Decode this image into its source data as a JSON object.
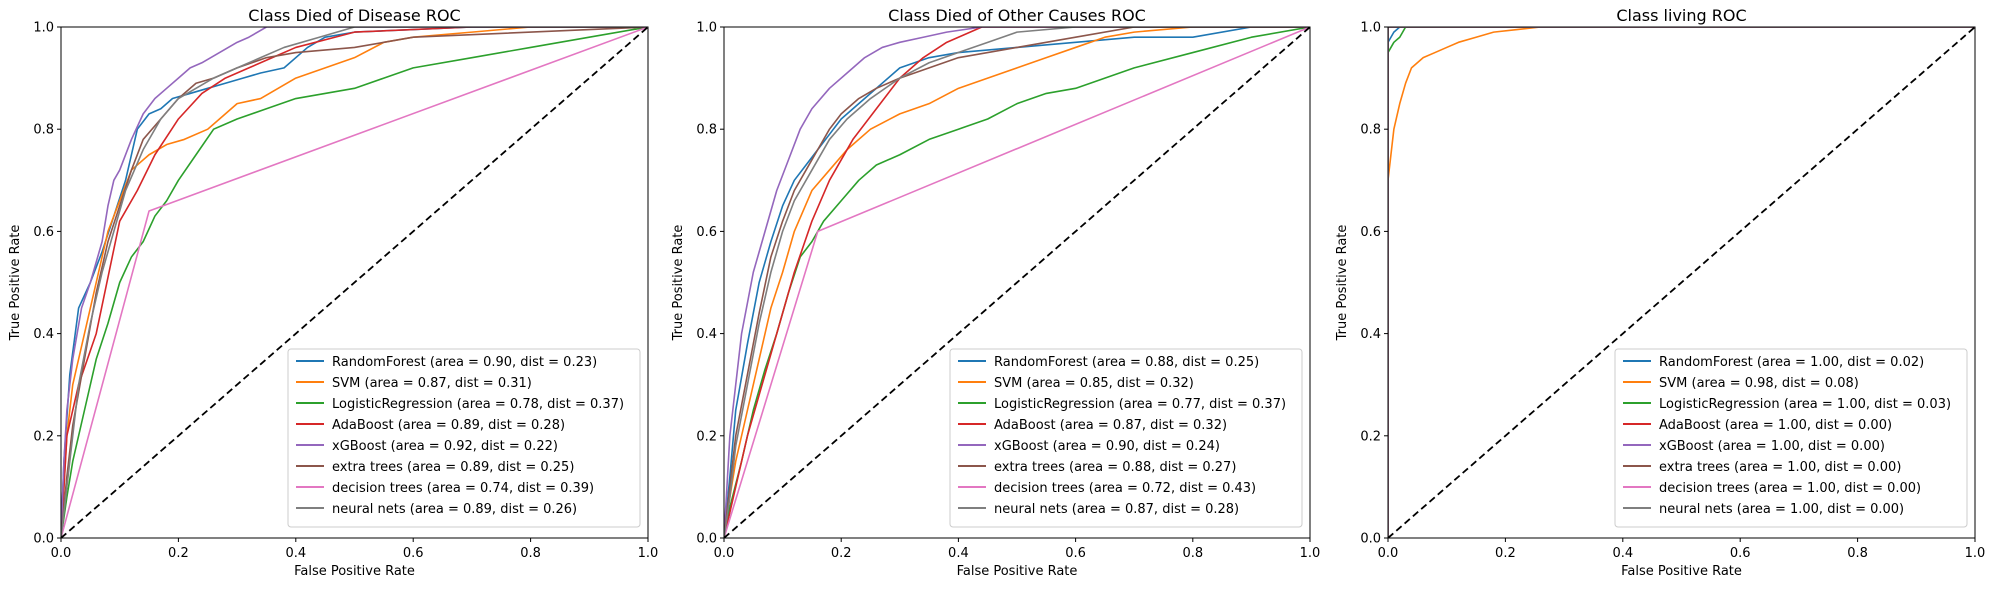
{
  "chart_data": [
    {
      "type": "line",
      "title": "Class Died of Disease ROC",
      "xlabel": "False Positive Rate",
      "ylabel": "True Positive Rate",
      "xlim": [
        0,
        1
      ],
      "ylim": [
        0,
        1
      ],
      "xticks": [
        "0.0",
        "0.2",
        "0.4",
        "0.6",
        "0.8",
        "1.0"
      ],
      "yticks": [
        "0.0",
        "0.2",
        "0.4",
        "0.6",
        "0.8",
        "1.0"
      ],
      "legend_position": "lower-right",
      "diagonal": "dashed black",
      "series": [
        {
          "name": "RandomForest (area = 0.90, dist = 0.23)",
          "color": "#1f77b4",
          "x": [
            0,
            0.005,
            0.015,
            0.03,
            0.05,
            0.07,
            0.09,
            0.11,
            0.13,
            0.15,
            0.17,
            0.19,
            0.22,
            0.25,
            0.28,
            0.31,
            0.34,
            0.38,
            0.42,
            0.45,
            0.5,
            0.6,
            0.7,
            0.8,
            1.0
          ],
          "y": [
            0,
            0.15,
            0.32,
            0.45,
            0.5,
            0.56,
            0.63,
            0.7,
            0.8,
            0.83,
            0.84,
            0.86,
            0.87,
            0.88,
            0.89,
            0.9,
            0.91,
            0.92,
            0.96,
            0.98,
            0.99,
            0.995,
            1.0,
            1.0,
            1.0
          ]
        },
        {
          "name": "SVM (area = 0.87, dist = 0.31)",
          "color": "#ff7f0e",
          "x": [
            0,
            0.005,
            0.01,
            0.02,
            0.04,
            0.06,
            0.08,
            0.1,
            0.12,
            0.15,
            0.18,
            0.21,
            0.25,
            0.28,
            0.3,
            0.34,
            0.37,
            0.4,
            0.45,
            0.5,
            0.55,
            0.6,
            0.7,
            0.8,
            1.0
          ],
          "y": [
            0,
            0.1,
            0.2,
            0.3,
            0.4,
            0.5,
            0.6,
            0.66,
            0.72,
            0.75,
            0.77,
            0.78,
            0.8,
            0.83,
            0.85,
            0.86,
            0.88,
            0.9,
            0.92,
            0.94,
            0.97,
            0.98,
            0.99,
            1.0,
            1.0
          ]
        },
        {
          "name": "LogisticRegression (area = 0.78, dist = 0.37)",
          "color": "#2ca02c",
          "x": [
            0,
            0.01,
            0.02,
            0.04,
            0.06,
            0.08,
            0.1,
            0.12,
            0.14,
            0.16,
            0.18,
            0.2,
            0.23,
            0.26,
            0.3,
            0.35,
            0.4,
            0.45,
            0.5,
            0.55,
            0.6,
            0.7,
            0.8,
            0.9,
            1.0
          ],
          "y": [
            0,
            0.08,
            0.15,
            0.25,
            0.35,
            0.42,
            0.5,
            0.55,
            0.58,
            0.63,
            0.66,
            0.7,
            0.75,
            0.8,
            0.82,
            0.84,
            0.86,
            0.87,
            0.88,
            0.9,
            0.92,
            0.94,
            0.96,
            0.98,
            1.0
          ]
        },
        {
          "name": "AdaBoost (area = 0.89, dist = 0.28)",
          "color": "#d62728",
          "x": [
            0,
            0.01,
            0.03,
            0.06,
            0.1,
            0.13,
            0.16,
            0.2,
            0.24,
            0.28,
            0.32,
            0.36,
            0.4,
            0.5,
            0.7,
            1.0
          ],
          "y": [
            0,
            0.2,
            0.3,
            0.4,
            0.62,
            0.68,
            0.75,
            0.82,
            0.87,
            0.9,
            0.92,
            0.94,
            0.96,
            0.99,
            1.0,
            1.0
          ]
        },
        {
          "name": "xGBoost (area = 0.92, dist = 0.22)",
          "color": "#9467bd",
          "x": [
            0,
            0.005,
            0.01,
            0.02,
            0.035,
            0.05,
            0.07,
            0.08,
            0.09,
            0.1,
            0.12,
            0.14,
            0.16,
            0.18,
            0.2,
            0.22,
            0.24,
            0.27,
            0.3,
            0.32,
            0.35,
            0.4,
            1.0
          ],
          "y": [
            0,
            0.15,
            0.25,
            0.35,
            0.45,
            0.5,
            0.58,
            0.65,
            0.7,
            0.72,
            0.78,
            0.83,
            0.86,
            0.88,
            0.9,
            0.92,
            0.93,
            0.95,
            0.97,
            0.98,
            1.0,
            1.0,
            1.0
          ]
        },
        {
          "name": "extra trees (area = 0.89, dist = 0.25)",
          "color": "#8c564b",
          "x": [
            0,
            0.01,
            0.02,
            0.04,
            0.06,
            0.08,
            0.1,
            0.12,
            0.14,
            0.17,
            0.2,
            0.23,
            0.26,
            0.3,
            0.35,
            0.4,
            0.5,
            0.6,
            1.0
          ],
          "y": [
            0,
            0.12,
            0.22,
            0.35,
            0.48,
            0.58,
            0.65,
            0.72,
            0.78,
            0.82,
            0.86,
            0.89,
            0.9,
            0.92,
            0.94,
            0.95,
            0.96,
            0.98,
            1.0
          ]
        },
        {
          "name": "decision trees (area = 0.74, dist = 0.39)",
          "color": "#e377c2",
          "x": [
            0,
            0.15,
            1.0
          ],
          "y": [
            0,
            0.64,
            1.0
          ]
        },
        {
          "name": "neural nets (area = 0.89, dist = 0.26)",
          "color": "#7f7f7f",
          "x": [
            0,
            0.01,
            0.02,
            0.03,
            0.05,
            0.07,
            0.09,
            0.11,
            0.14,
            0.17,
            0.2,
            0.23,
            0.26,
            0.3,
            0.34,
            0.38,
            0.44,
            0.5,
            1.0
          ],
          "y": [
            0,
            0.1,
            0.2,
            0.3,
            0.42,
            0.52,
            0.6,
            0.68,
            0.76,
            0.82,
            0.86,
            0.88,
            0.9,
            0.92,
            0.94,
            0.96,
            0.98,
            1.0,
            1.0
          ]
        }
      ]
    },
    {
      "type": "line",
      "title": "Class Died of Other Causes ROC",
      "xlabel": "False Positive Rate",
      "ylabel": "True Positive Rate",
      "xlim": [
        0,
        1
      ],
      "ylim": [
        0,
        1
      ],
      "xticks": [
        "0.0",
        "0.2",
        "0.4",
        "0.6",
        "0.8",
        "1.0"
      ],
      "yticks": [
        "0.0",
        "0.2",
        "0.4",
        "0.6",
        "0.8",
        "1.0"
      ],
      "legend_position": "lower-right",
      "diagonal": "dashed black",
      "series": [
        {
          "name": "RandomForest (area = 0.88, dist = 0.25)",
          "color": "#1f77b4",
          "x": [
            0,
            0.01,
            0.02,
            0.04,
            0.06,
            0.08,
            0.1,
            0.12,
            0.14,
            0.16,
            0.18,
            0.2,
            0.23,
            0.26,
            0.3,
            0.35,
            0.4,
            0.5,
            0.6,
            0.7,
            0.8,
            0.9,
            1.0
          ],
          "y": [
            0,
            0.12,
            0.25,
            0.38,
            0.5,
            0.58,
            0.65,
            0.7,
            0.73,
            0.76,
            0.79,
            0.82,
            0.85,
            0.88,
            0.92,
            0.94,
            0.95,
            0.96,
            0.97,
            0.98,
            0.98,
            1.0,
            1.0
          ]
        },
        {
          "name": "SVM (area = 0.85, dist = 0.32)",
          "color": "#ff7f0e",
          "x": [
            0,
            0.01,
            0.02,
            0.04,
            0.06,
            0.08,
            0.1,
            0.12,
            0.15,
            0.18,
            0.21,
            0.25,
            0.3,
            0.35,
            0.4,
            0.45,
            0.5,
            0.55,
            0.6,
            0.65,
            0.7,
            0.8,
            1.0
          ],
          "y": [
            0,
            0.08,
            0.15,
            0.25,
            0.35,
            0.45,
            0.52,
            0.6,
            0.68,
            0.72,
            0.76,
            0.8,
            0.83,
            0.85,
            0.88,
            0.9,
            0.92,
            0.94,
            0.96,
            0.98,
            0.99,
            1.0,
            1.0
          ]
        },
        {
          "name": "LogisticRegression (area = 0.77, dist = 0.37)",
          "color": "#2ca02c",
          "x": [
            0,
            0.01,
            0.03,
            0.05,
            0.07,
            0.09,
            0.11,
            0.13,
            0.15,
            0.17,
            0.2,
            0.23,
            0.26,
            0.3,
            0.35,
            0.4,
            0.45,
            0.5,
            0.55,
            0.6,
            0.65,
            0.7,
            0.8,
            0.9,
            1.0
          ],
          "y": [
            0,
            0.06,
            0.15,
            0.25,
            0.33,
            0.4,
            0.48,
            0.55,
            0.58,
            0.62,
            0.66,
            0.7,
            0.73,
            0.75,
            0.78,
            0.8,
            0.82,
            0.85,
            0.87,
            0.88,
            0.9,
            0.92,
            0.95,
            0.98,
            1.0
          ]
        },
        {
          "name": "AdaBoost (area = 0.87, dist = 0.32)",
          "color": "#d62728",
          "x": [
            0,
            0.02,
            0.04,
            0.06,
            0.09,
            0.12,
            0.15,
            0.18,
            0.22,
            0.26,
            0.3,
            0.34,
            0.38,
            0.44,
            0.5,
            0.6,
            1.0
          ],
          "y": [
            0,
            0.1,
            0.2,
            0.28,
            0.4,
            0.52,
            0.62,
            0.7,
            0.78,
            0.84,
            0.9,
            0.94,
            0.97,
            1.0,
            1.0,
            1.0,
            1.0
          ]
        },
        {
          "name": "xGBoost (area = 0.90, dist = 0.24)",
          "color": "#9467bd",
          "x": [
            0,
            0.005,
            0.01,
            0.02,
            0.03,
            0.05,
            0.07,
            0.09,
            0.11,
            0.13,
            0.15,
            0.18,
            0.21,
            0.24,
            0.27,
            0.3,
            0.34,
            0.38,
            0.44,
            0.5,
            1.0
          ],
          "y": [
            0,
            0.1,
            0.2,
            0.3,
            0.4,
            0.52,
            0.6,
            0.68,
            0.74,
            0.8,
            0.84,
            0.88,
            0.91,
            0.94,
            0.96,
            0.97,
            0.98,
            0.99,
            1.0,
            1.0,
            1.0
          ]
        },
        {
          "name": "extra trees (area = 0.88, dist = 0.27)",
          "color": "#8c564b",
          "x": [
            0,
            0.01,
            0.02,
            0.04,
            0.06,
            0.08,
            0.1,
            0.12,
            0.14,
            0.16,
            0.18,
            0.2,
            0.23,
            0.26,
            0.3,
            0.35,
            0.4,
            0.5,
            0.6,
            0.7,
            1.0
          ],
          "y": [
            0,
            0.1,
            0.2,
            0.32,
            0.44,
            0.55,
            0.62,
            0.68,
            0.72,
            0.76,
            0.8,
            0.83,
            0.86,
            0.88,
            0.9,
            0.92,
            0.94,
            0.96,
            0.98,
            1.0,
            1.0
          ]
        },
        {
          "name": "decision trees (area = 0.72, dist = 0.43)",
          "color": "#e377c2",
          "x": [
            0,
            0.16,
            1.0
          ],
          "y": [
            0,
            0.6,
            1.0
          ]
        },
        {
          "name": "neural nets (area = 0.87, dist = 0.28)",
          "color": "#7f7f7f",
          "x": [
            0,
            0.01,
            0.02,
            0.04,
            0.06,
            0.08,
            0.1,
            0.12,
            0.15,
            0.18,
            0.21,
            0.25,
            0.3,
            0.35,
            0.4,
            0.45,
            0.5,
            0.6,
            1.0
          ],
          "y": [
            0,
            0.08,
            0.18,
            0.3,
            0.42,
            0.52,
            0.6,
            0.66,
            0.72,
            0.78,
            0.82,
            0.86,
            0.9,
            0.93,
            0.95,
            0.97,
            0.99,
            1.0,
            1.0
          ]
        }
      ]
    },
    {
      "type": "line",
      "title": "Class living ROC",
      "xlabel": "False Positive Rate",
      "ylabel": "True Positive Rate",
      "xlim": [
        0,
        1
      ],
      "ylim": [
        0,
        1
      ],
      "xticks": [
        "0.0",
        "0.2",
        "0.4",
        "0.6",
        "0.8",
        "1.0"
      ],
      "yticks": [
        "0.0",
        "0.2",
        "0.4",
        "0.6",
        "0.8",
        "1.0"
      ],
      "legend_position": "lower-right",
      "diagonal": "dashed black",
      "series": [
        {
          "name": "RandomForest (area = 1.00, dist = 0.02)",
          "color": "#1f77b4",
          "x": [
            0,
            0.0,
            0.005,
            0.01,
            0.02,
            1.0
          ],
          "y": [
            0,
            0.97,
            0.98,
            0.99,
            1.0,
            1.0
          ]
        },
        {
          "name": "SVM (area = 0.98, dist = 0.08)",
          "color": "#ff7f0e",
          "x": [
            0,
            0.0,
            0.005,
            0.01,
            0.02,
            0.03,
            0.04,
            0.06,
            0.08,
            0.1,
            0.12,
            0.15,
            0.18,
            0.22,
            0.26,
            1.0
          ],
          "y": [
            0,
            0.7,
            0.75,
            0.8,
            0.85,
            0.89,
            0.92,
            0.94,
            0.95,
            0.96,
            0.97,
            0.98,
            0.99,
            0.995,
            1.0,
            1.0
          ]
        },
        {
          "name": "LogisticRegression (area = 1.00, dist = 0.03)",
          "color": "#2ca02c",
          "x": [
            0,
            0.0,
            0.005,
            0.01,
            0.02,
            0.03,
            1.0
          ],
          "y": [
            0,
            0.95,
            0.96,
            0.97,
            0.98,
            1.0,
            1.0
          ]
        },
        {
          "name": "AdaBoost (area = 1.00, dist = 0.00)",
          "color": "#d62728",
          "x": [
            0,
            0.0,
            1.0
          ],
          "y": [
            0,
            1.0,
            1.0
          ]
        },
        {
          "name": "xGBoost (area = 1.00, dist = 0.00)",
          "color": "#9467bd",
          "x": [
            0,
            0.0,
            1.0
          ],
          "y": [
            0,
            1.0,
            1.0
          ]
        },
        {
          "name": "extra trees (area = 1.00, dist = 0.00)",
          "color": "#8c564b",
          "x": [
            0,
            0.0,
            1.0
          ],
          "y": [
            0,
            1.0,
            1.0
          ]
        },
        {
          "name": "decision trees (area = 1.00, dist = 0.00)",
          "color": "#e377c2",
          "x": [
            0,
            0.0,
            1.0
          ],
          "y": [
            0,
            1.0,
            1.0
          ]
        },
        {
          "name": "neural nets (area = 1.00, dist = 0.00)",
          "color": "#7f7f7f",
          "x": [
            0,
            0.0,
            1.0
          ],
          "y": [
            0,
            1.0,
            1.0
          ]
        }
      ]
    }
  ]
}
